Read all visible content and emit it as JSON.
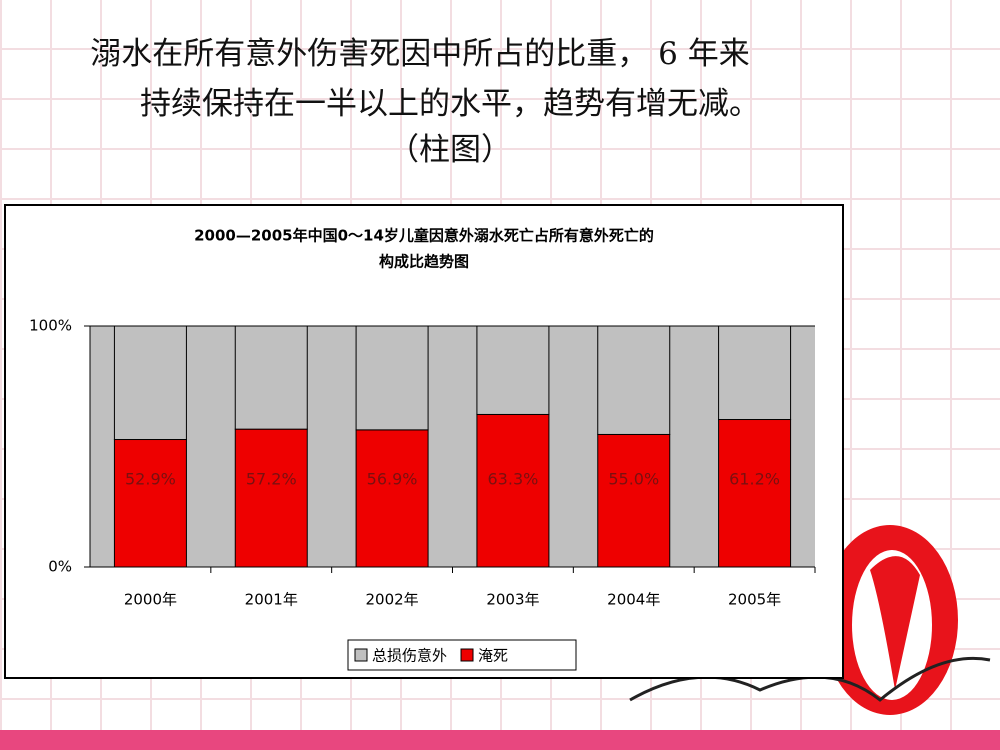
{
  "slide": {
    "heading": [
      "溺水在所有意外伤害死因中所占的比重， 6 年来",
      "持续保持在一半以上的水平，趋势有增无减。",
      "（柱图）"
    ]
  },
  "chart_data": {
    "type": "stacked-bar",
    "title": [
      "2000—2005年中国0～14岁儿童因意外溺水死亡占所有意外死亡的",
      "构成比趋势图"
    ],
    "categories": [
      "2000年",
      "2001年",
      "2002年",
      "2003年",
      "2004年",
      "2005年"
    ],
    "series": [
      {
        "name": "淹死",
        "color": "#ee0000",
        "values": [
          52.9,
          57.2,
          56.9,
          63.3,
          55.0,
          61.2
        ],
        "value_labels": [
          "52.9%",
          "57.2%",
          "56.9%",
          "63.3%",
          "55.0%",
          "61.2%"
        ]
      },
      {
        "name": "总损伤意外",
        "color": "#c0c0c0",
        "values": [
          47.1,
          42.8,
          43.1,
          36.7,
          45.0,
          38.8
        ]
      }
    ],
    "ylim": [
      0,
      100
    ],
    "yticks": [
      {
        "value": 0,
        "label": "0%"
      },
      {
        "value": 100,
        "label": "100%"
      }
    ],
    "legend": "bottom"
  }
}
